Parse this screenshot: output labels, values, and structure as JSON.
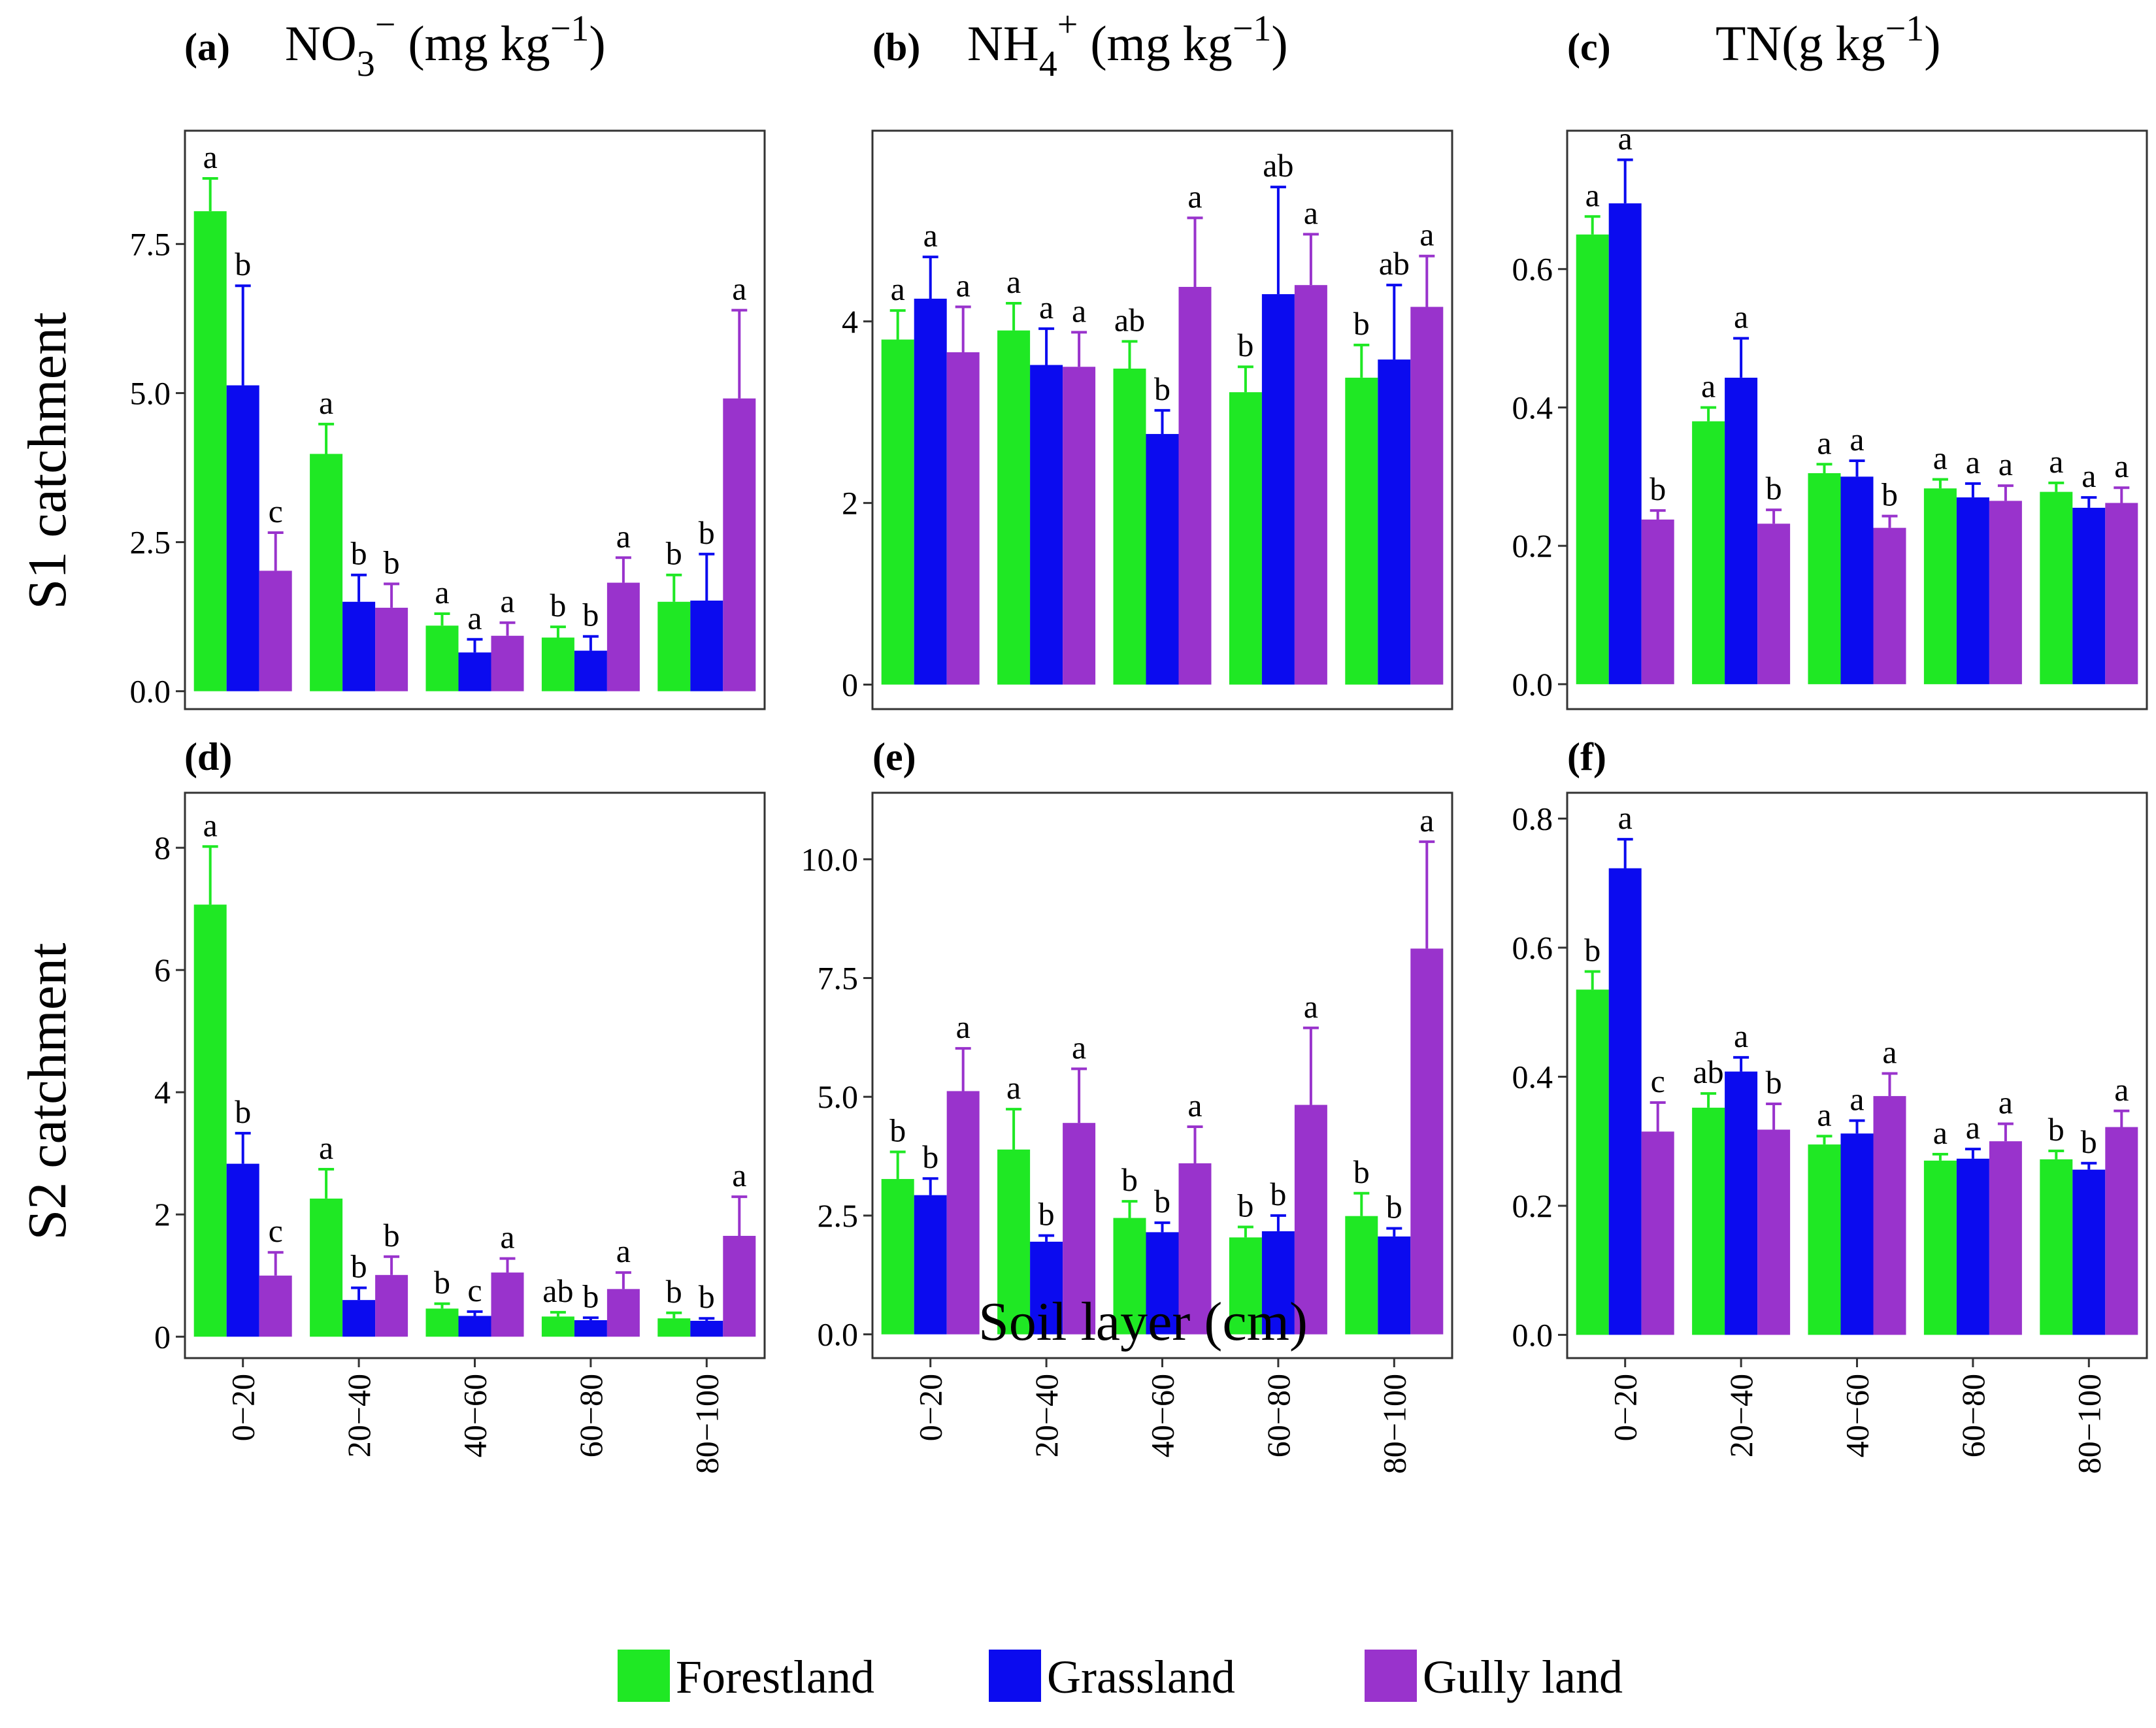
{
  "figure": {
    "x_axis_title": "Soil layer (cm)",
    "row_labels": [
      "S1 catchment",
      "S2 catchment"
    ],
    "col_titles": [
      {
        "panel": "(a)",
        "main": "NO",
        "sub": "3",
        "sup": "−",
        "unit": " (mg kg",
        "unit_sup": "−1",
        "close": ")"
      },
      {
        "panel": "(b)",
        "main": "NH",
        "sub": "4",
        "sup": "+",
        "unit": " (mg kg",
        "unit_sup": "−1",
        "close": ")"
      },
      {
        "panel": "(c)",
        "main": "TN(g kg",
        "sub": "",
        "sup": "−1",
        "unit": ")",
        "unit_sup": "",
        "close": ""
      }
    ],
    "lower_panel_letters": [
      "(d)",
      "(e)",
      "(f)"
    ]
  },
  "legend": {
    "items": [
      {
        "label": "Forestland",
        "color": "#1fe824"
      },
      {
        "label": "Grassland",
        "color": "#0b0bef"
      },
      {
        "label": "Gully land",
        "color": "#9933cc"
      }
    ]
  },
  "chart_data": [
    {
      "id": "a",
      "type": "bar",
      "title": "(a) NO3− (mg kg−1)",
      "xlabel": "Soil layer (cm)",
      "ylabel": "S1 catchment",
      "categories": [
        "0−20",
        "20−40",
        "40−60",
        "60−80",
        "80−100"
      ],
      "ylim": [
        -0.3,
        9.4
      ],
      "yticks": [
        0,
        2.5,
        5,
        7.5
      ],
      "ytick_labels": [
        "0.0",
        "2.5",
        "5.0",
        "7.5"
      ],
      "series": [
        {
          "name": "Forestland",
          "values": [
            8.05,
            3.98,
            1.1,
            0.9,
            1.5
          ],
          "errors": [
            0.55,
            0.5,
            0.2,
            0.18,
            0.45
          ],
          "letters": [
            "a",
            "a",
            "a",
            "b",
            "b"
          ]
        },
        {
          "name": "Grassland",
          "values": [
            5.13,
            1.5,
            0.65,
            0.68,
            1.52
          ],
          "errors": [
            1.67,
            0.45,
            0.22,
            0.24,
            0.78
          ],
          "letters": [
            "b",
            "b",
            "a",
            "b",
            "b"
          ]
        },
        {
          "name": "Gully land",
          "values": [
            2.02,
            1.4,
            0.93,
            1.82,
            4.91
          ],
          "errors": [
            0.64,
            0.4,
            0.22,
            0.42,
            1.48
          ],
          "letters": [
            "c",
            "b",
            "a",
            "a",
            "a"
          ]
        }
      ]
    },
    {
      "id": "b",
      "type": "bar",
      "title": "(b) NH4+ (mg kg−1)",
      "xlabel": "Soil layer (cm)",
      "ylabel": "",
      "categories": [
        "0−20",
        "20−40",
        "40−60",
        "60−80",
        "80−100"
      ],
      "ylim": [
        -0.27,
        6.1
      ],
      "yticks": [
        0,
        2,
        4
      ],
      "ytick_labels": [
        "0",
        "2",
        "4"
      ],
      "series": [
        {
          "name": "Forestland",
          "values": [
            3.8,
            3.9,
            3.48,
            3.22,
            3.38
          ],
          "errors": [
            0.32,
            0.3,
            0.3,
            0.28,
            0.36
          ],
          "letters": [
            "a",
            "a",
            "ab",
            "b",
            "b"
          ]
        },
        {
          "name": "Grassland",
          "values": [
            4.25,
            3.52,
            2.76,
            4.3,
            3.58
          ],
          "errors": [
            0.46,
            0.4,
            0.26,
            1.18,
            0.82
          ],
          "letters": [
            "a",
            "a",
            "b",
            "ab",
            "ab"
          ]
        },
        {
          "name": "Gully land",
          "values": [
            3.66,
            3.5,
            4.38,
            4.4,
            4.16
          ],
          "errors": [
            0.5,
            0.38,
            0.76,
            0.56,
            0.56
          ],
          "letters": [
            "a",
            "a",
            "a",
            "a",
            "a"
          ]
        }
      ]
    },
    {
      "id": "c",
      "type": "bar",
      "title": "(c) TN(g kg−1)",
      "xlabel": "Soil layer (cm)",
      "ylabel": "",
      "categories": [
        "0−20",
        "20−40",
        "40−60",
        "60−80",
        "80−100"
      ],
      "ylim": [
        -0.036,
        0.8
      ],
      "yticks": [
        0,
        0.2,
        0.4,
        0.6
      ],
      "ytick_labels": [
        "0.0",
        "0.2",
        "0.4",
        "0.6"
      ],
      "series": [
        {
          "name": "Forestland",
          "values": [
            0.65,
            0.38,
            0.305,
            0.283,
            0.278
          ],
          "errors": [
            0.026,
            0.02,
            0.013,
            0.013,
            0.013
          ],
          "letters": [
            "a",
            "a",
            "a",
            "a",
            "a"
          ]
        },
        {
          "name": "Grassland",
          "values": [
            0.695,
            0.443,
            0.3,
            0.27,
            0.255
          ],
          "errors": [
            0.063,
            0.057,
            0.023,
            0.02,
            0.015
          ],
          "letters": [
            "a",
            "a",
            "a",
            "a",
            "a"
          ]
        },
        {
          "name": "Gully land",
          "values": [
            0.238,
            0.232,
            0.226,
            0.265,
            0.262
          ],
          "errors": [
            0.013,
            0.02,
            0.017,
            0.022,
            0.022
          ],
          "letters": [
            "b",
            "b",
            "b",
            "a",
            "a"
          ]
        }
      ]
    },
    {
      "id": "d",
      "type": "bar",
      "title": "(d)",
      "xlabel": "Soil layer (cm)",
      "ylabel": "S2 catchment",
      "categories": [
        "0−20",
        "20−40",
        "40−60",
        "60−80",
        "80−100"
      ],
      "ylim": [
        -0.35,
        8.9
      ],
      "yticks": [
        0,
        2,
        4,
        6,
        8
      ],
      "ytick_labels": [
        "0",
        "2",
        "4",
        "6",
        "8"
      ],
      "series": [
        {
          "name": "Forestland",
          "values": [
            7.07,
            2.26,
            0.46,
            0.33,
            0.3
          ],
          "errors": [
            0.95,
            0.48,
            0.08,
            0.07,
            0.09
          ],
          "letters": [
            "a",
            "a",
            "b",
            "ab",
            "b"
          ]
        },
        {
          "name": "Grassland",
          "values": [
            2.83,
            0.6,
            0.34,
            0.27,
            0.26
          ],
          "errors": [
            0.5,
            0.2,
            0.07,
            0.04,
            0.04
          ],
          "letters": [
            "b",
            "b",
            "c",
            "b",
            "b"
          ]
        },
        {
          "name": "Gully land",
          "values": [
            1.0,
            1.01,
            1.05,
            0.78,
            1.65
          ],
          "errors": [
            0.38,
            0.3,
            0.23,
            0.27,
            0.64
          ],
          "letters": [
            "c",
            "b",
            "a",
            "a",
            "a"
          ]
        }
      ]
    },
    {
      "id": "e",
      "type": "bar",
      "title": "(e)",
      "xlabel": "Soil layer (cm)",
      "ylabel": "",
      "categories": [
        "0−20",
        "20−40",
        "40−60",
        "60−80",
        "80−100"
      ],
      "ylim": [
        -0.5,
        11.4
      ],
      "yticks": [
        0,
        2.5,
        5,
        7.5,
        10
      ],
      "ytick_labels": [
        "0.0",
        "2.5",
        "5.0",
        "7.5",
        "10.0"
      ],
      "series": [
        {
          "name": "Forestland",
          "values": [
            3.27,
            3.89,
            2.45,
            2.04,
            2.49
          ],
          "errors": [
            0.57,
            0.85,
            0.35,
            0.22,
            0.48
          ],
          "letters": [
            "b",
            "a",
            "b",
            "b",
            "b"
          ]
        },
        {
          "name": "Grassland",
          "values": [
            2.93,
            1.95,
            2.15,
            2.17,
            2.06
          ],
          "errors": [
            0.35,
            0.13,
            0.2,
            0.33,
            0.17
          ],
          "letters": [
            "b",
            "b",
            "b",
            "b",
            "b"
          ]
        },
        {
          "name": "Gully land",
          "values": [
            5.12,
            4.45,
            3.6,
            4.83,
            8.12
          ],
          "errors": [
            0.9,
            1.14,
            0.77,
            1.62,
            2.25
          ],
          "letters": [
            "a",
            "a",
            "a",
            "a",
            "a"
          ]
        }
      ]
    },
    {
      "id": "f",
      "type": "bar",
      "title": "(f)",
      "xlabel": "Soil layer (cm)",
      "ylabel": "",
      "categories": [
        "0−20",
        "20−40",
        "40−60",
        "60−80",
        "80−100"
      ],
      "ylim": [
        -0.036,
        0.84
      ],
      "yticks": [
        0,
        0.2,
        0.4,
        0.6,
        0.8
      ],
      "ytick_labels": [
        "0.0",
        "0.2",
        "0.4",
        "0.6",
        "0.8"
      ],
      "series": [
        {
          "name": "Forestland",
          "values": [
            0.535,
            0.352,
            0.295,
            0.27,
            0.272
          ],
          "errors": [
            0.028,
            0.022,
            0.013,
            0.01,
            0.013
          ],
          "letters": [
            "b",
            "ab",
            "a",
            "a",
            "b"
          ]
        },
        {
          "name": "Grassland",
          "values": [
            0.723,
            0.408,
            0.312,
            0.273,
            0.256
          ],
          "errors": [
            0.045,
            0.022,
            0.02,
            0.015,
            0.01
          ],
          "letters": [
            "a",
            "a",
            "a",
            "a",
            "b"
          ]
        },
        {
          "name": "Gully land",
          "values": [
            0.315,
            0.318,
            0.37,
            0.3,
            0.322
          ],
          "errors": [
            0.045,
            0.04,
            0.035,
            0.027,
            0.025
          ],
          "letters": [
            "c",
            "b",
            "a",
            "a",
            "a"
          ]
        }
      ]
    }
  ]
}
